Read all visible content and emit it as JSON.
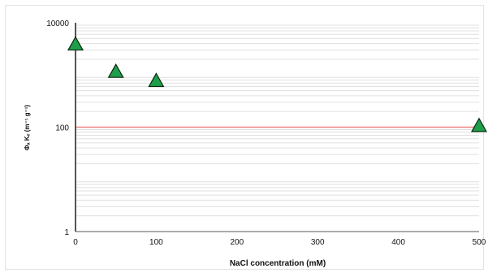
{
  "chart_data": {
    "type": "scatter",
    "title": "",
    "xlabel": "NaCl concentration (mM)",
    "ylabel": "Φₐ Kₑ (m⁻¹ g⁻¹)",
    "xlim": [
      0,
      500
    ],
    "ylim": [
      1,
      10000
    ],
    "yscale": "log",
    "x_ticks": [
      0,
      100,
      200,
      300,
      400,
      500
    ],
    "y_ticks": [
      1,
      100,
      10000
    ],
    "grid": "horizontal minor gridlines",
    "series": [
      {
        "x": [
          0,
          50,
          100,
          500
        ],
        "y": [
          4000,
          1200,
          800,
          110
        ],
        "marker": "triangle",
        "color": "#1e9e4a"
      }
    ],
    "reference_line": {
      "y": 100,
      "color": "#f08080"
    },
    "colors": {
      "marker_fill": "#1e9e4a",
      "marker_stroke": "#0a2a12",
      "axis": "#555555",
      "grid": "#e0e0e0",
      "reference": "#f08080"
    }
  }
}
